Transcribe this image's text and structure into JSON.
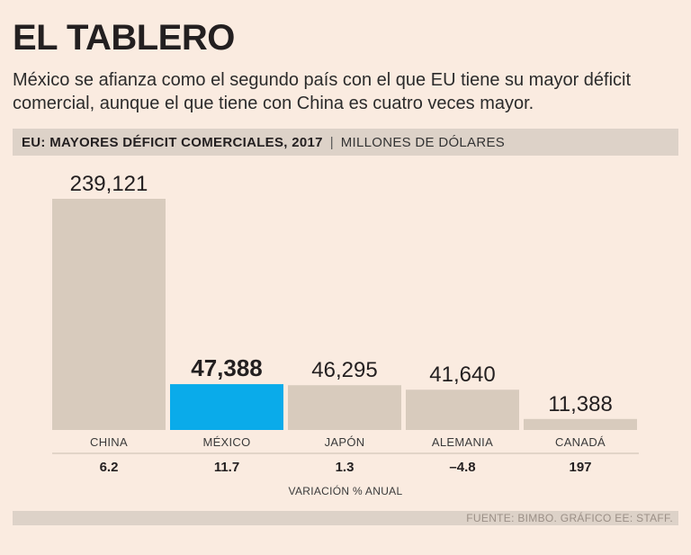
{
  "header": {
    "title": "EL TABLERO",
    "subtitle": "México se afianza como el segundo país con el que EU tiene su mayor déficit comercial, aunque el que tiene con China es cuatro veces mayor.",
    "band_title": "EU: MAYORES DÉFICIT COMERCIALES, 2017",
    "band_separator": "|",
    "band_unit": "MILLONES DE DÓLARES"
  },
  "chart_data": {
    "type": "bar",
    "title": "EU: MAYORES DÉFICIT COMERCIALES, 2017",
    "ylabel": "MILLONES DE DÓLARES",
    "categories": [
      "CHINA",
      "MÉXICO",
      "JAPÓN",
      "ALEMANIA",
      "CANADÁ"
    ],
    "values": [
      239121,
      47388,
      46295,
      41640,
      11388
    ],
    "value_labels": [
      "239,121",
      "47,388",
      "46,295",
      "41,640",
      "11,388"
    ],
    "highlight_index": 1,
    "ylim": [
      0,
      239121
    ],
    "secondary_row_label": "VARIACIÓN % ANUAL",
    "secondary_values": [
      "6.2",
      "11.7",
      "1.3",
      "–4.8",
      "197"
    ],
    "colors": {
      "default": "#d8cbbd",
      "highlight": "#0aabea",
      "text": "#231f20",
      "axis": "#c9bcaf"
    }
  },
  "footer": {
    "source": "FUENTE: BIMBO. GRÁFICO EE: STAFF."
  }
}
